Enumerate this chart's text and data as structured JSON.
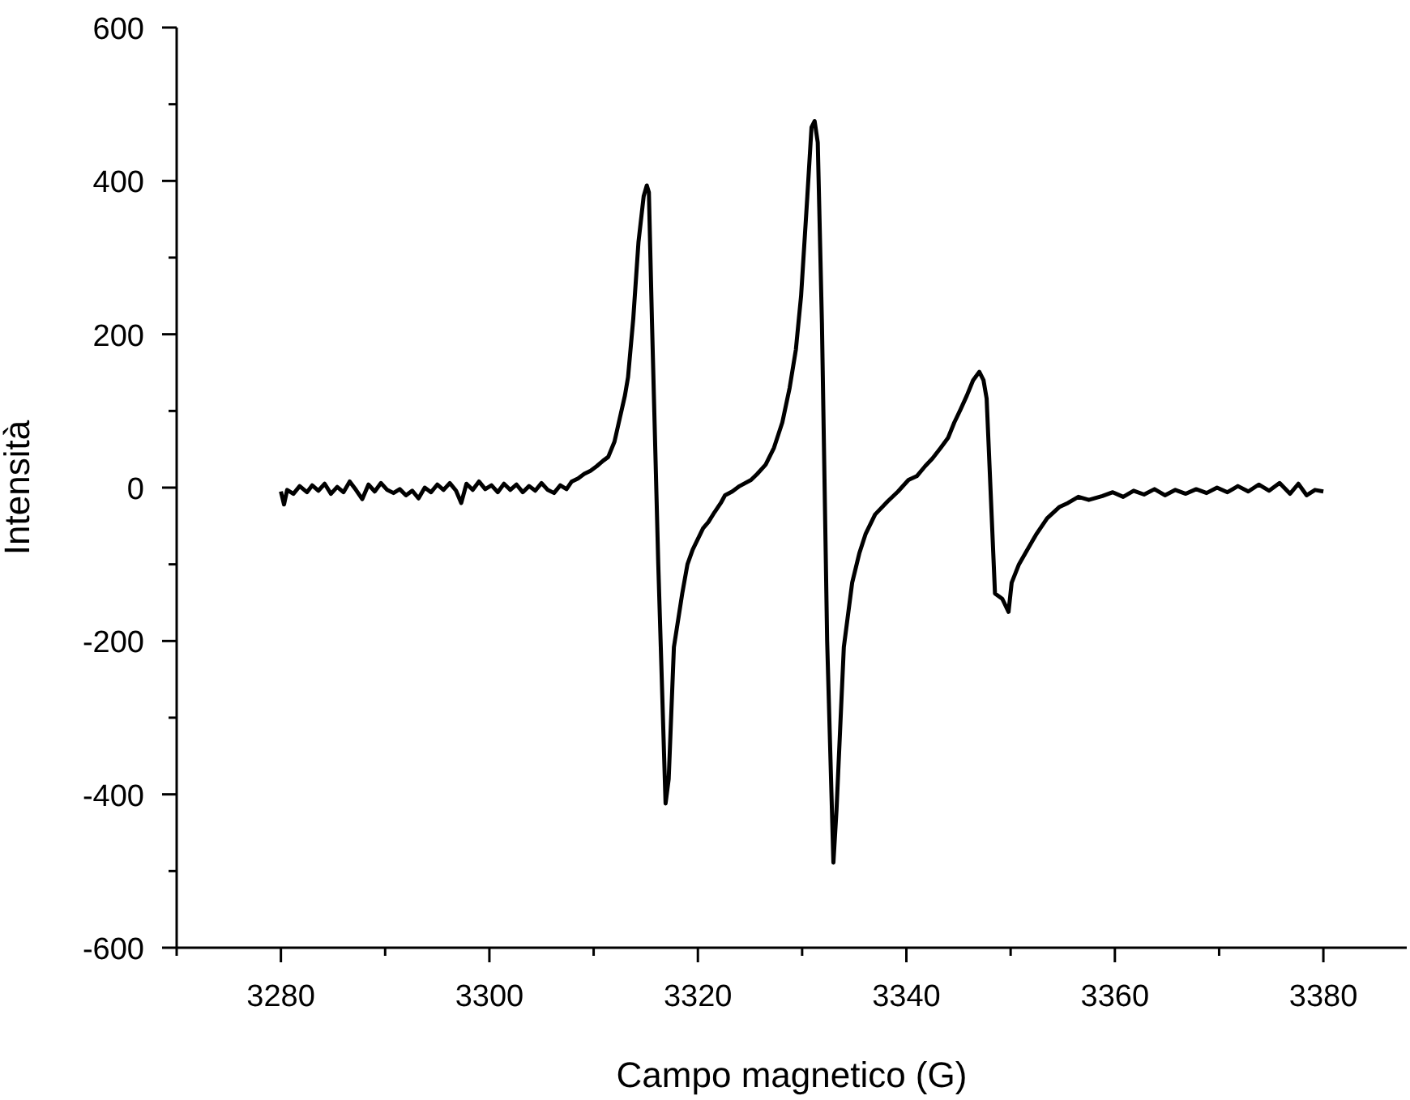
{
  "chart_data": {
    "type": "line",
    "xlabel": "Campo magnetico (G)",
    "ylabel": "Intensità",
    "xlim": [
      3270,
      3388
    ],
    "xticks": [
      {
        "value": 3270,
        "label": null
      },
      3280,
      {
        "value": 3290,
        "label": null
      },
      3300,
      {
        "value": 3310,
        "label": null
      },
      3320,
      {
        "value": 3330,
        "label": null
      },
      3340,
      {
        "value": 3350,
        "label": null
      },
      3360,
      {
        "value": 3370,
        "label": null
      },
      3380
    ],
    "ylim": [
      -600,
      600
    ],
    "yticks": [
      -600,
      {
        "value": -500,
        "label": null
      },
      -400,
      {
        "value": -300,
        "label": null
      },
      -200,
      {
        "value": -100,
        "label": null
      },
      0,
      {
        "value": 100,
        "label": null
      },
      200,
      {
        "value": 300,
        "label": null
      },
      400,
      {
        "value": 500,
        "label": null
      },
      600
    ],
    "grid": false,
    "marker": "none",
    "line_style": "solid",
    "series": [
      {
        "color": "#000000",
        "x": [
          3280.0,
          3280.3,
          3280.6,
          3281.2,
          3281.8,
          3282.5,
          3283.0,
          3283.6,
          3284.2,
          3284.8,
          3285.4,
          3286.0,
          3286.6,
          3287.2,
          3287.8,
          3288.4,
          3289.0,
          3289.6,
          3290.2,
          3290.8,
          3291.4,
          3292.0,
          3292.6,
          3293.2,
          3293.8,
          3294.4,
          3295.0,
          3295.6,
          3296.2,
          3296.8,
          3297.3,
          3297.8,
          3298.4,
          3299.0,
          3299.6,
          3300.2,
          3300.8,
          3301.4,
          3302.0,
          3302.6,
          3303.2,
          3303.8,
          3304.4,
          3305.0,
          3305.6,
          3306.2,
          3306.8,
          3307.4,
          3307.9,
          3308.5,
          3309.1,
          3309.7,
          3310.3,
          3310.9,
          3311.4,
          3312.0,
          3312.5,
          3313.0,
          3313.3,
          3313.8,
          3314.3,
          3314.8,
          3315.1,
          3315.3,
          3315.6,
          3316.2,
          3316.9,
          3317.2,
          3317.7,
          3318.5,
          3319.0,
          3319.5,
          3320.5,
          3321.0,
          3321.6,
          3322.2,
          3322.6,
          3323.3,
          3324.0,
          3325.1,
          3325.7,
          3326.5,
          3327.3,
          3328.1,
          3328.8,
          3329.4,
          3329.9,
          3330.5,
          3330.9,
          3331.2,
          3331.5,
          3331.9,
          3332.4,
          3333.0,
          3333.3,
          3334.0,
          3334.8,
          3335.5,
          3336.1,
          3337.0,
          3338.2,
          3339.2,
          3340.2,
          3341.0,
          3341.8,
          3342.5,
          3343.3,
          3344.0,
          3344.6,
          3345.2,
          3345.8,
          3346.4,
          3347.0,
          3347.4,
          3347.7,
          3348.5,
          3349.2,
          3349.8,
          3350.1,
          3350.8,
          3351.6,
          3352.5,
          3353.5,
          3354.7,
          3355.5,
          3356.5,
          3357.5,
          3358.8,
          3359.8,
          3360.8,
          3361.8,
          3362.8,
          3363.8,
          3364.8,
          3365.8,
          3366.8,
          3367.8,
          3368.8,
          3369.8,
          3370.8,
          3371.8,
          3372.8,
          3373.8,
          3374.8,
          3375.8,
          3376.8,
          3377.6,
          3378.4,
          3379.2,
          3380.0
        ],
        "values": [
          -5,
          -22,
          -3,
          -8,
          2,
          -6,
          3,
          -4,
          5,
          -8,
          1,
          -6,
          8,
          -3,
          -15,
          4,
          -5,
          6,
          -3,
          -7,
          -2,
          -10,
          -4,
          -14,
          0,
          -6,
          4,
          -3,
          6,
          -4,
          -20,
          5,
          -3,
          8,
          -2,
          3,
          -6,
          5,
          -3,
          4,
          -6,
          2,
          -4,
          6,
          -3,
          -7,
          3,
          -2,
          8,
          12,
          18,
          22,
          28,
          35,
          40,
          60,
          90,
          120,
          144,
          220,
          320,
          380,
          394,
          385,
          214,
          -100,
          -412,
          -380,
          -208,
          -138,
          -100,
          -81,
          -53,
          -45,
          -32,
          -20,
          -10,
          -5,
          2,
          10,
          18,
          30,
          52,
          85,
          130,
          180,
          250,
          380,
          470,
          478,
          450,
          214,
          -200,
          -489,
          -420,
          -208,
          -124,
          -85,
          -60,
          -35,
          -18,
          -5,
          10,
          15,
          28,
          38,
          52,
          65,
          85,
          102,
          120,
          140,
          151,
          140,
          116,
          -138,
          -145,
          -162,
          -124,
          -100,
          -81,
          -60,
          -40,
          -25,
          -20,
          -12,
          -16,
          -11,
          -6,
          -12,
          -4,
          -9,
          -2,
          -10,
          -3,
          -8,
          -2,
          -7,
          0,
          -6,
          2,
          -5,
          4,
          -4,
          6,
          -8,
          5,
          -10,
          -3,
          -5
        ]
      }
    ]
  }
}
